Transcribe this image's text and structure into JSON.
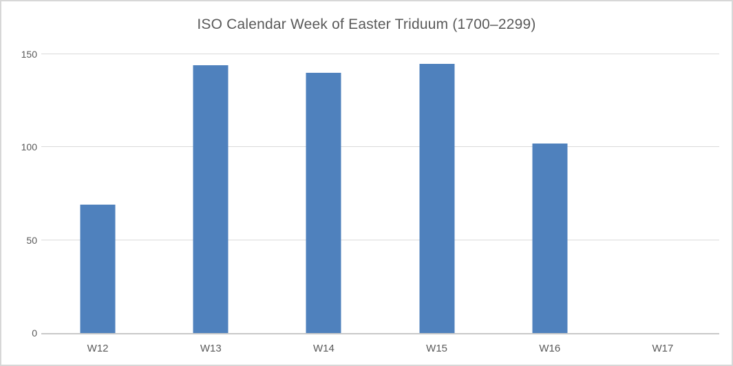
{
  "chart_data": {
    "type": "bar",
    "title": "ISO Calendar Week of Easter Triduum (1700–2299)",
    "categories": [
      "W12",
      "W13",
      "W14",
      "W15",
      "W16",
      "W17"
    ],
    "values": [
      69,
      144,
      140,
      145,
      102,
      0
    ],
    "xlabel": "",
    "ylabel": "",
    "ylim": [
      0,
      150
    ],
    "yticks": [
      0,
      50,
      100,
      150
    ],
    "grid": true,
    "legend": false,
    "bar_color": "#4f81bd"
  },
  "colors": {
    "bar": "#4f81bd",
    "title_text": "#595959",
    "tick_text": "#595959",
    "gridline": "#d9d9d9",
    "axis_line": "#c8c8c8",
    "frame_border": "#d7d7d7",
    "background": "#ffffff"
  }
}
